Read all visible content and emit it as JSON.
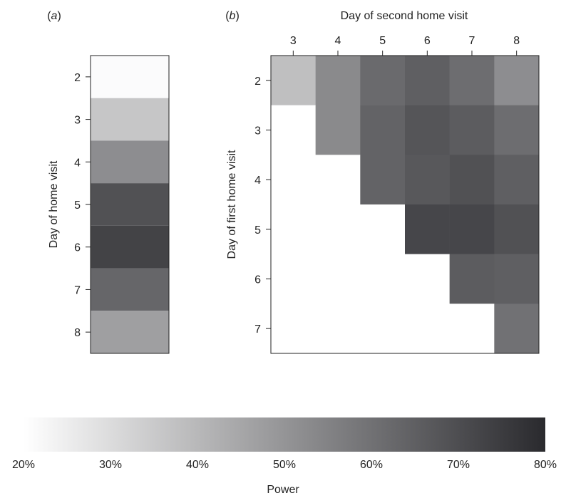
{
  "panels": {
    "a_label": "a",
    "b_label": "b"
  },
  "chart_data": [
    {
      "type": "heatmap",
      "panel": "a",
      "ylabel": "Day of home visit",
      "y_categories": [
        "2",
        "3",
        "4",
        "5",
        "6",
        "7",
        "8"
      ],
      "values": [
        21,
        36,
        52,
        69,
        73,
        63,
        47
      ],
      "value_units": "percent power"
    },
    {
      "type": "heatmap",
      "panel": "b",
      "title": "Day of second home visit",
      "ylabel": "Day of first home visit",
      "x_categories": [
        "3",
        "4",
        "5",
        "6",
        "7",
        "8"
      ],
      "y_categories": [
        "2",
        "3",
        "4",
        "5",
        "6",
        "7"
      ],
      "values": [
        [
          38,
          53,
          62,
          65,
          61,
          52
        ],
        [
          null,
          53,
          64,
          68,
          66,
          61
        ],
        [
          null,
          null,
          64,
          67,
          69,
          65
        ],
        [
          null,
          null,
          null,
          72,
          72,
          69
        ],
        [
          null,
          null,
          null,
          null,
          66,
          65
        ],
        [
          null,
          null,
          null,
          null,
          null,
          60
        ]
      ],
      "missing_color": "#ffffff",
      "value_units": "percent power"
    },
    {
      "type": "colorbar",
      "label": "Power",
      "range": [
        20,
        80
      ],
      "ticks": [
        "20%",
        "30%",
        "40%",
        "50%",
        "60%",
        "70%",
        "80%"
      ],
      "color_low": "#ffffff",
      "color_high": "#2a2a2e"
    }
  ]
}
